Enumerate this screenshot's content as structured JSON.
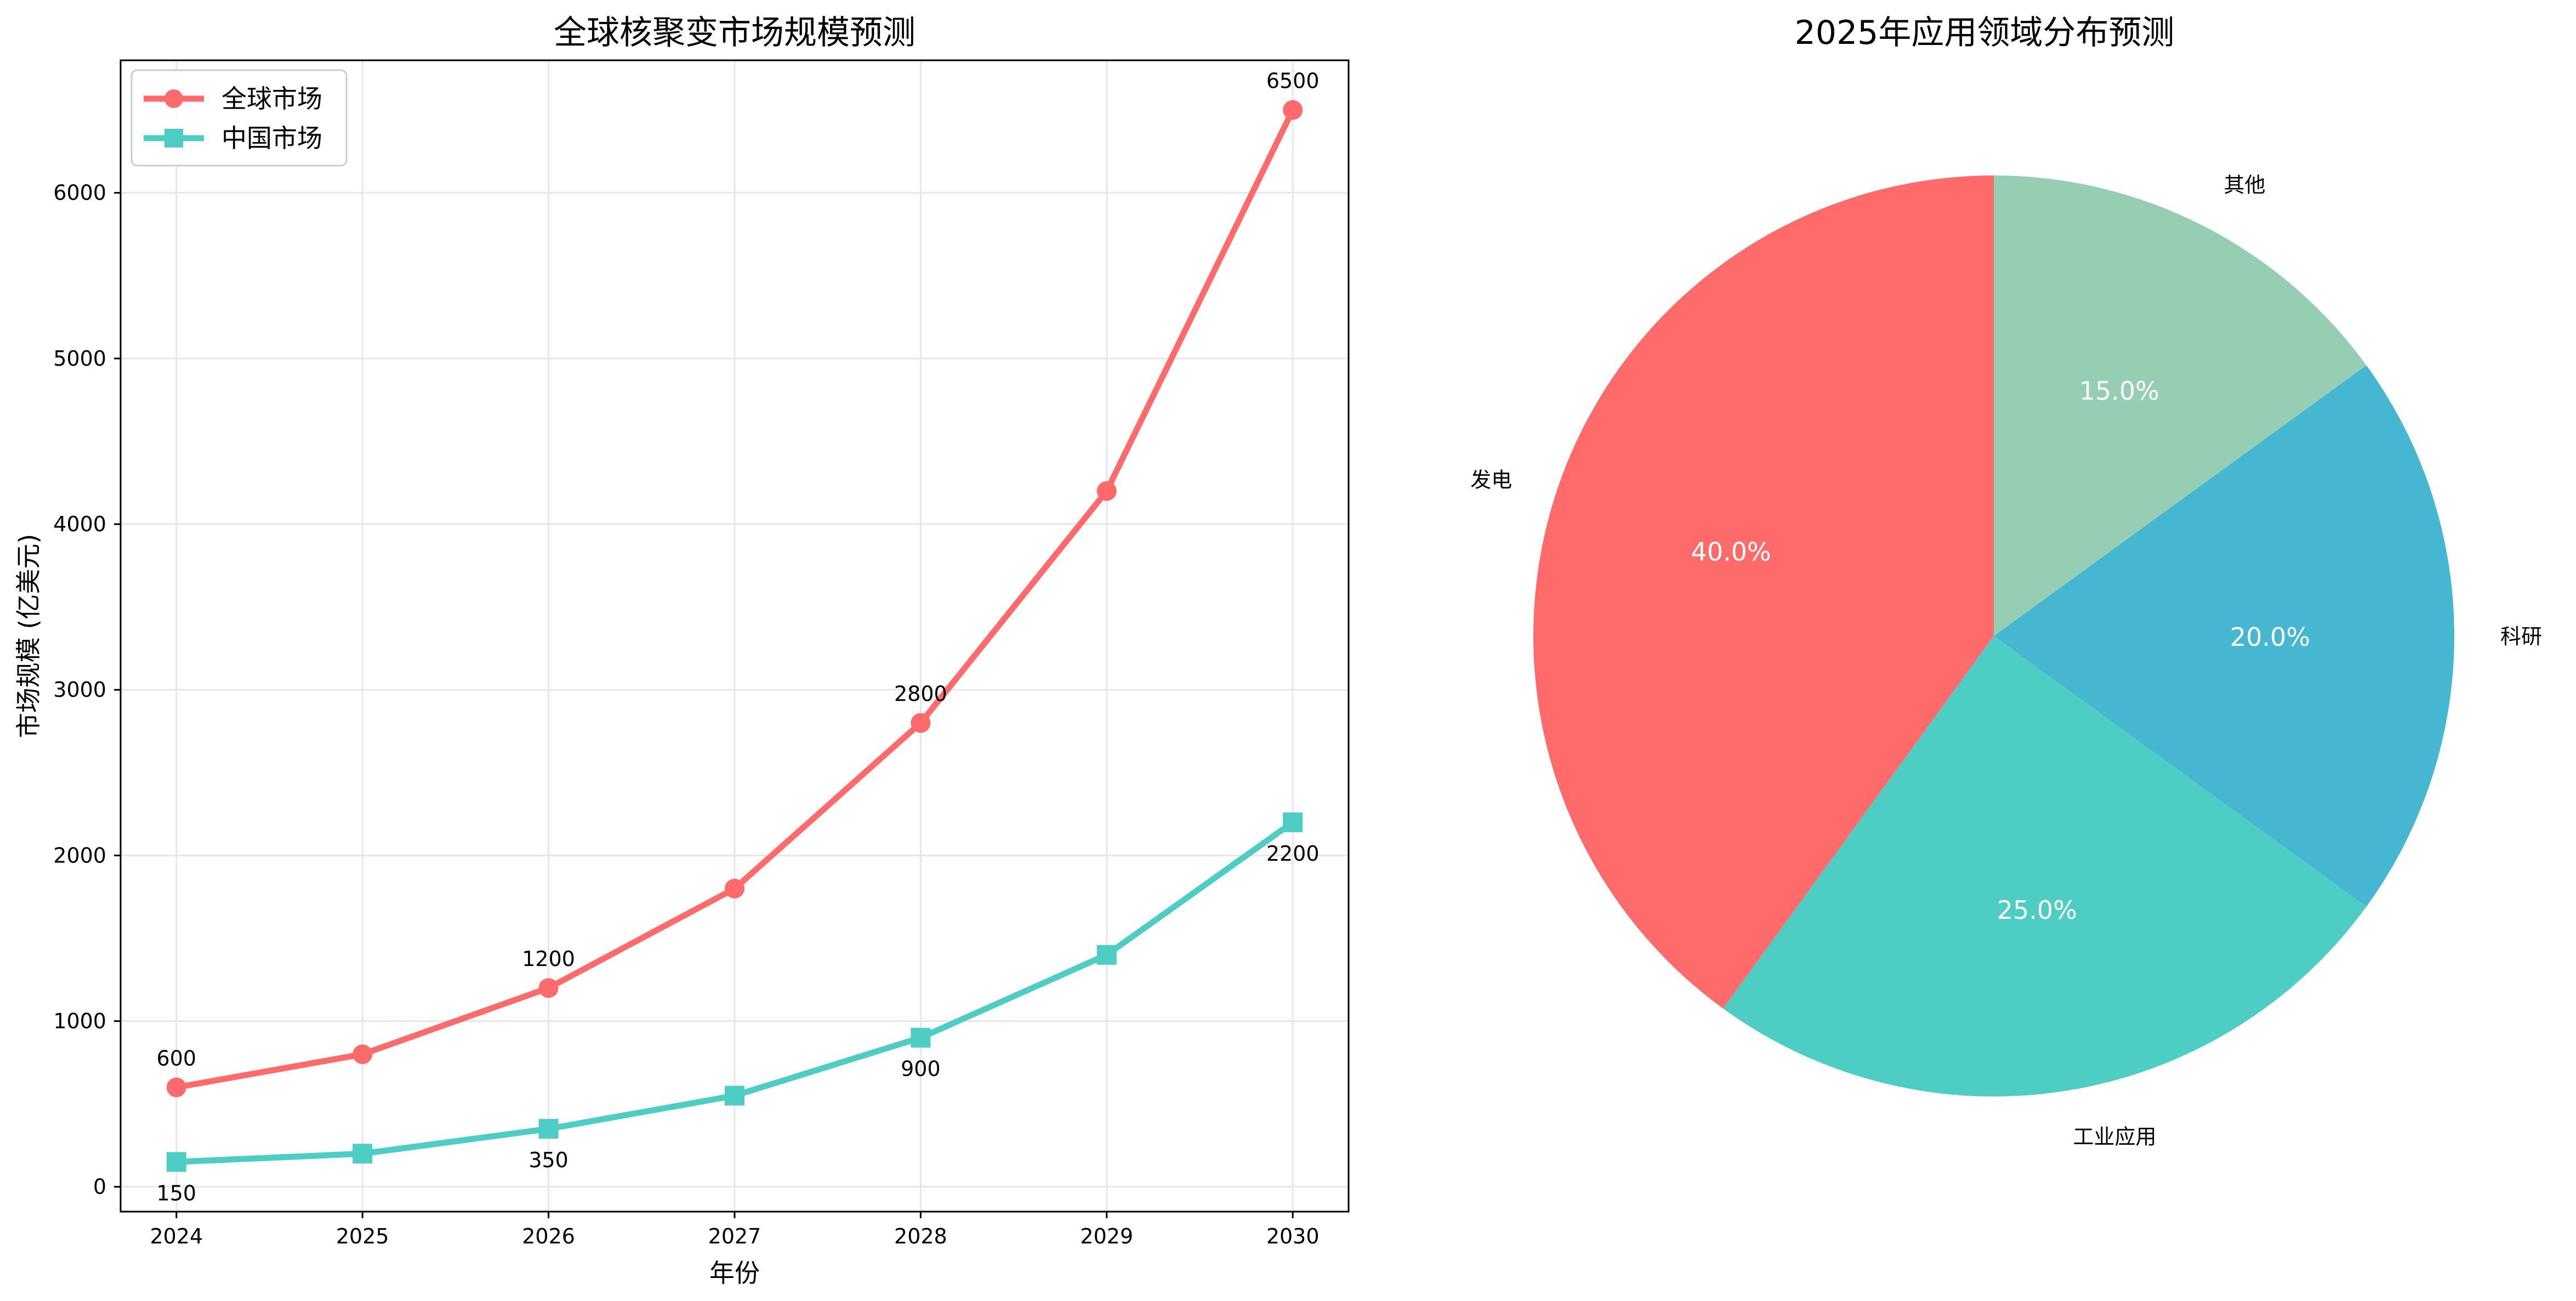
{
  "chart_data": [
    {
      "type": "line",
      "title": "全球核聚变市场规模预测",
      "xlabel": "年份",
      "ylabel": "市场规模 (亿美元)",
      "x": [
        2024,
        2025,
        2026,
        2027,
        2028,
        2029,
        2030
      ],
      "xlim": [
        2023.7,
        2030.3
      ],
      "ylim": [
        -150,
        6800
      ],
      "yticks": [
        0,
        1000,
        2000,
        3000,
        4000,
        5000,
        6000
      ],
      "grid": true,
      "legend_position": "upper-left",
      "series": [
        {
          "name": "全球市场",
          "color": "#ff6b6b",
          "marker": "circle",
          "values": [
            600,
            800,
            1200,
            1800,
            2800,
            4200,
            6500
          ],
          "annotated_points": [
            {
              "x": 2024,
              "label": "600"
            },
            {
              "x": 2026,
              "label": "1200"
            },
            {
              "x": 2028,
              "label": "2800"
            },
            {
              "x": 2030,
              "label": "6500"
            }
          ]
        },
        {
          "name": "中国市场",
          "color": "#4ecdc4",
          "marker": "square",
          "values": [
            150,
            200,
            350,
            550,
            900,
            1400,
            2200
          ],
          "annotated_points": [
            {
              "x": 2024,
              "label": "150"
            },
            {
              "x": 2026,
              "label": "350"
            },
            {
              "x": 2028,
              "label": "900"
            },
            {
              "x": 2030,
              "label": "2200"
            }
          ]
        }
      ]
    },
    {
      "type": "pie",
      "title": "2025年应用领域分布预测",
      "start_angle": 90,
      "direction": "counterclockwise",
      "slices": [
        {
          "label": "发电",
          "value": 40,
          "pct_label": "40.0%",
          "color": "#ff6b6b"
        },
        {
          "label": "工业应用",
          "value": 25,
          "pct_label": "25.0%",
          "color": "#4ecdc4"
        },
        {
          "label": "科研",
          "value": 20,
          "pct_label": "20.0%",
          "color": "#45b7d1"
        },
        {
          "label": "其他",
          "value": 15,
          "pct_label": "15.0%",
          "color": "#96ceb4"
        }
      ]
    }
  ]
}
